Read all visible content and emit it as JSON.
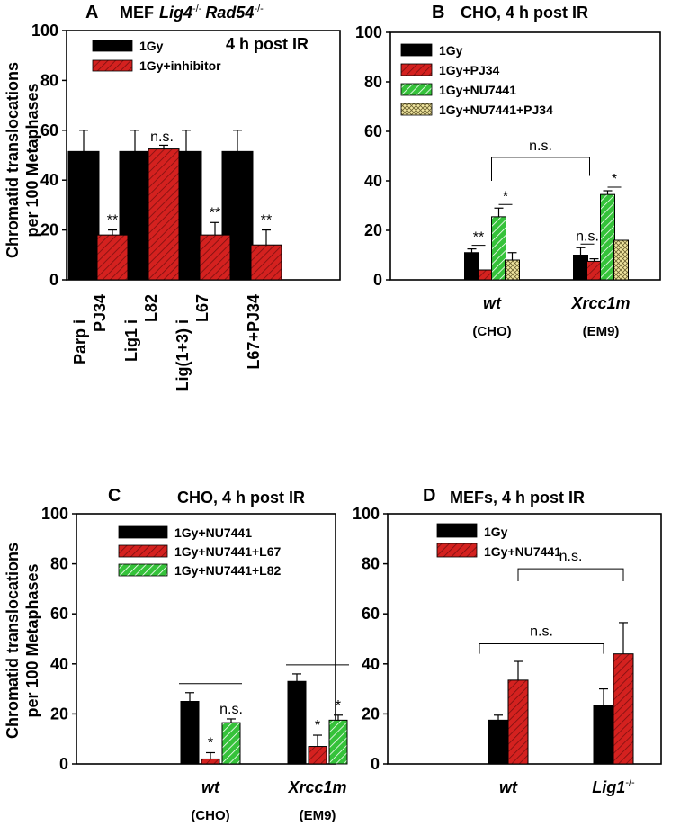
{
  "figure": {
    "y_axis_label_line1": "Chromatid translocations",
    "y_axis_label_line2": "per 100 Metaphases"
  },
  "colors": {
    "black": "#000000",
    "red": "#d4211f",
    "green": "#35c23a",
    "yellow": "#f0e6a0"
  },
  "chart_data": [
    {
      "panel_label": "A",
      "title_prefix": "MEF",
      "title_genotype_1": "Lig4",
      "title_genotype_1_sup": "-/-",
      "title_genotype_2": "Rad54",
      "title_genotype_2_sup": "-/-",
      "post_ir_label": "4 h post IR",
      "type": "bar",
      "ylim": [
        0,
        100
      ],
      "yticks": [
        0,
        20,
        40,
        60,
        80,
        100
      ],
      "legend": [
        {
          "label": "1Gy",
          "pattern": "black"
        },
        {
          "label": "1Gy+inhibitor",
          "pattern": "red"
        }
      ],
      "categories": [
        {
          "line1": "PJ34",
          "line2": "Parp i"
        },
        {
          "line1": "L82",
          "line2": "Lig1 i"
        },
        {
          "line1": "L67",
          "line2": "Lig(1+3) i"
        },
        {
          "line1": "L67+PJ34",
          "line2": ""
        }
      ],
      "series": [
        {
          "name": "1Gy",
          "values": [
            51.5,
            51.5,
            51.5,
            51.5
          ],
          "errors": [
            8.5,
            8.5,
            8.5,
            8.5
          ]
        },
        {
          "name": "1Gy+inhibitor",
          "values": [
            18,
            52.5,
            18,
            14
          ],
          "errors": [
            2,
            1.5,
            5,
            6
          ]
        }
      ],
      "annotations": [
        {
          "text": "**",
          "category": 0,
          "series": 1
        },
        {
          "text": "n.s.",
          "category": 1,
          "series": 0
        },
        {
          "text": "**",
          "category": 2,
          "series": 1
        },
        {
          "text": "**",
          "category": 3,
          "series": 1
        }
      ]
    },
    {
      "panel_label": "B",
      "title": "CHO, 4 h post IR",
      "type": "bar",
      "ylim": [
        0,
        100
      ],
      "yticks": [
        0,
        20,
        40,
        60,
        80,
        100
      ],
      "legend": [
        {
          "label": "1Gy",
          "pattern": "black"
        },
        {
          "label": "1Gy+PJ34",
          "pattern": "red"
        },
        {
          "label": "1Gy+NU7441",
          "pattern": "green"
        },
        {
          "label": "1Gy+NU7441+PJ34",
          "pattern": "yellow"
        }
      ],
      "categories": [
        {
          "label": "wt",
          "sub": "(CHO)"
        },
        {
          "label": "Xrcc1m",
          "sub": "(EM9)"
        }
      ],
      "series": [
        {
          "name": "1Gy",
          "values": [
            11,
            10
          ],
          "errors": [
            1.5,
            3
          ]
        },
        {
          "name": "1Gy+PJ34",
          "values": [
            4,
            7.5
          ],
          "errors": [
            0,
            1
          ]
        },
        {
          "name": "1Gy+NU7441",
          "values": [
            25.5,
            34.5
          ],
          "errors": [
            3.5,
            1.5
          ]
        },
        {
          "name": "1Gy+NU7441+PJ34",
          "values": [
            8,
            16
          ],
          "errors": [
            3,
            0
          ]
        }
      ],
      "annotations": [
        {
          "text": "**",
          "type": "bracket",
          "category": 0,
          "from": 0,
          "to": 1
        },
        {
          "text": "*",
          "type": "bracket",
          "category": 0,
          "from": 2,
          "to": 3
        },
        {
          "text": "n.s.",
          "type": "bracket",
          "category": 1,
          "from": 0,
          "to": 1
        },
        {
          "text": "*",
          "type": "bracket",
          "category": 1,
          "from": 2,
          "to": 3
        },
        {
          "text": "n.s.",
          "type": "group-bracket",
          "from_category": 0,
          "to_category": 1,
          "series": 2
        }
      ]
    },
    {
      "panel_label": "C",
      "title": "CHO, 4 h post IR",
      "type": "bar",
      "ylim": [
        0,
        100
      ],
      "yticks": [
        0,
        20,
        40,
        60,
        80,
        100
      ],
      "legend": [
        {
          "label": "1Gy+NU7441",
          "pattern": "black"
        },
        {
          "label": "1Gy+NU7441+L67",
          "pattern": "red"
        },
        {
          "label": "1Gy+NU7441+L82",
          "pattern": "green"
        }
      ],
      "categories": [
        {
          "label": "wt",
          "sub": "(CHO)"
        },
        {
          "label": "Xrcc1m",
          "sub": "(EM9)"
        }
      ],
      "series": [
        {
          "name": "1Gy+NU7441",
          "values": [
            25,
            33
          ],
          "errors": [
            3.5,
            3
          ]
        },
        {
          "name": "1Gy+NU7441+L67",
          "values": [
            2,
            7
          ],
          "errors": [
            2.5,
            4.5
          ]
        },
        {
          "name": "1Gy+NU7441+L82",
          "values": [
            16.5,
            17.5
          ],
          "errors": [
            1.5,
            2
          ]
        }
      ],
      "annotations": [
        {
          "text": "*",
          "category": 0,
          "series": 1
        },
        {
          "text": "n.s.",
          "category": 0,
          "series": 2
        },
        {
          "text": "*",
          "category": 1,
          "series": 1
        },
        {
          "text": "*",
          "category": 1,
          "series": 2
        },
        {
          "text": "",
          "type": "line",
          "category": 0
        },
        {
          "text": "",
          "type": "line",
          "category": 1
        }
      ]
    },
    {
      "panel_label": "D",
      "title": "MEFs, 4 h post IR",
      "type": "bar",
      "ylim": [
        0,
        100
      ],
      "yticks": [
        0,
        20,
        40,
        60,
        80,
        100
      ],
      "legend": [
        {
          "label": "1Gy",
          "pattern": "black"
        },
        {
          "label": "1Gy+NU7441",
          "pattern": "red"
        }
      ],
      "categories": [
        {
          "label": "wt",
          "sup": ""
        },
        {
          "label": "Lig1",
          "sup": "-/-"
        }
      ],
      "series": [
        {
          "name": "1Gy",
          "values": [
            17.5,
            23.5
          ],
          "errors": [
            2,
            6.5
          ]
        },
        {
          "name": "1Gy+NU7441",
          "values": [
            33.5,
            44
          ],
          "errors": [
            7.5,
            12.5
          ]
        }
      ],
      "annotations": [
        {
          "text": "n.s.",
          "type": "bracket-low",
          "from_category": 0,
          "to_category": 1
        },
        {
          "text": "n.s.",
          "type": "bracket-high",
          "from_category": 0,
          "to_category": 1
        }
      ]
    }
  ]
}
